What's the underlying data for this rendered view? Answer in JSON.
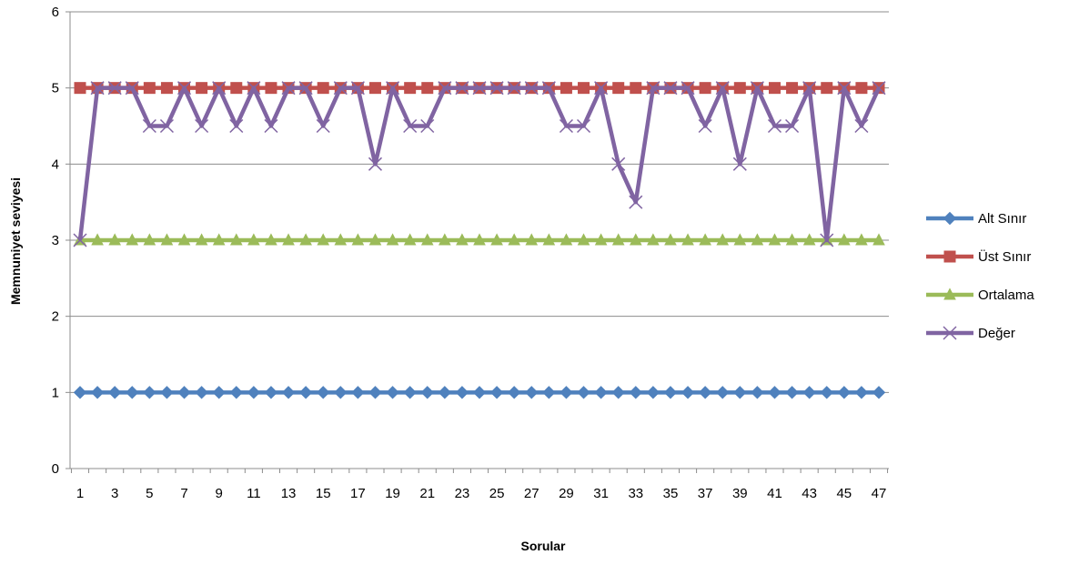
{
  "chart_data": {
    "type": "line",
    "title": "",
    "xlabel": "Sorular",
    "ylabel": "Memnuniyet seviyesi",
    "ylim": [
      0,
      6
    ],
    "yticks": [
      0,
      1,
      2,
      3,
      4,
      5,
      6
    ],
    "x": [
      1,
      2,
      3,
      4,
      5,
      6,
      7,
      8,
      9,
      10,
      11,
      12,
      13,
      14,
      15,
      16,
      17,
      18,
      19,
      20,
      21,
      22,
      23,
      24,
      25,
      26,
      27,
      28,
      29,
      30,
      31,
      32,
      33,
      34,
      35,
      36,
      37,
      38,
      39,
      40,
      41,
      42,
      43,
      44,
      45,
      46,
      47
    ],
    "x_tick_labels": [
      "1",
      "3",
      "5",
      "7",
      "9",
      "11",
      "13",
      "15",
      "17",
      "19",
      "21",
      "23",
      "25",
      "27",
      "29",
      "31",
      "33",
      "35",
      "37",
      "39",
      "41",
      "43",
      "45",
      "47"
    ],
    "grid": true,
    "legend_position": "right",
    "series": [
      {
        "name": "Alt Sınır",
        "color": "#4f81bd",
        "marker": "diamond",
        "values": [
          1,
          1,
          1,
          1,
          1,
          1,
          1,
          1,
          1,
          1,
          1,
          1,
          1,
          1,
          1,
          1,
          1,
          1,
          1,
          1,
          1,
          1,
          1,
          1,
          1,
          1,
          1,
          1,
          1,
          1,
          1,
          1,
          1,
          1,
          1,
          1,
          1,
          1,
          1,
          1,
          1,
          1,
          1,
          1,
          1,
          1,
          1
        ]
      },
      {
        "name": "Üst Sınır",
        "color": "#c0504d",
        "marker": "square",
        "values": [
          5,
          5,
          5,
          5,
          5,
          5,
          5,
          5,
          5,
          5,
          5,
          5,
          5,
          5,
          5,
          5,
          5,
          5,
          5,
          5,
          5,
          5,
          5,
          5,
          5,
          5,
          5,
          5,
          5,
          5,
          5,
          5,
          5,
          5,
          5,
          5,
          5,
          5,
          5,
          5,
          5,
          5,
          5,
          5,
          5,
          5,
          5
        ]
      },
      {
        "name": "Ortalama",
        "color": "#9bbb59",
        "marker": "triangle",
        "values": [
          3,
          3,
          3,
          3,
          3,
          3,
          3,
          3,
          3,
          3,
          3,
          3,
          3,
          3,
          3,
          3,
          3,
          3,
          3,
          3,
          3,
          3,
          3,
          3,
          3,
          3,
          3,
          3,
          3,
          3,
          3,
          3,
          3,
          3,
          3,
          3,
          3,
          3,
          3,
          3,
          3,
          3,
          3,
          3,
          3,
          3,
          3
        ]
      },
      {
        "name": "Değer",
        "color": "#8064a2",
        "marker": "x",
        "values": [
          3,
          5,
          5,
          5,
          4.5,
          4.5,
          5,
          4.5,
          5,
          4.5,
          5,
          4.5,
          5,
          5,
          4.5,
          5,
          5,
          4,
          5,
          4.5,
          4.5,
          5,
          5,
          5,
          5,
          5,
          5,
          5,
          4.5,
          4.5,
          5,
          4,
          3.5,
          5,
          5,
          5,
          4.5,
          5,
          4,
          5,
          4.5,
          4.5,
          5,
          3,
          5,
          4.5,
          5
        ]
      }
    ]
  }
}
